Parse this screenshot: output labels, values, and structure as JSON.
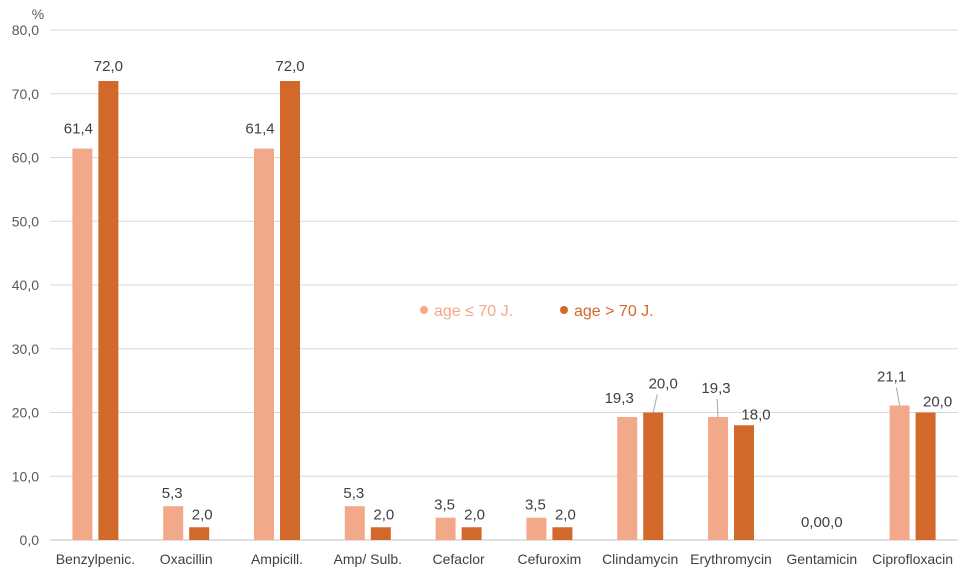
{
  "chart_data": {
    "type": "bar",
    "ylabel": "%",
    "ylim": [
      0,
      80
    ],
    "ytick_step": 10,
    "ytick_labels": [
      "0,0",
      "10,0",
      "20,0",
      "30,0",
      "40,0",
      "50,0",
      "60,0",
      "70,0",
      "80,0"
    ],
    "grid": true,
    "legend_position": "center-right",
    "categories": [
      "Benzylpenic.",
      "Oxacillin",
      "Ampicill.",
      "Amp/ Sulb.",
      "Cefaclor",
      "Cefuroxim",
      "Clindamycin",
      "Erythromycin",
      "Gentamicin",
      "Ciprofloxacin"
    ],
    "series": [
      {
        "name": "age ≤ 70 J.",
        "color": "#f2a98a",
        "values": [
          61.4,
          5.3,
          61.4,
          5.3,
          3.5,
          3.5,
          19.3,
          19.3,
          0.0,
          21.1
        ],
        "labels": [
          "61,4",
          "5,3",
          "61,4",
          "5,3",
          "3,5",
          "3,5",
          "19,3",
          "19,3",
          "0,0",
          "21,1"
        ]
      },
      {
        "name": "age > 70 J.",
        "color": "#d2692a",
        "values": [
          72.0,
          2.0,
          72.0,
          2.0,
          2.0,
          2.0,
          20.0,
          18.0,
          0.0,
          20.0
        ],
        "labels": [
          "72,0",
          "2,0",
          "72,0",
          "2,0",
          "2,0",
          "2,0",
          "20,0",
          "18,0",
          "0,0",
          "20,0"
        ]
      }
    ]
  }
}
